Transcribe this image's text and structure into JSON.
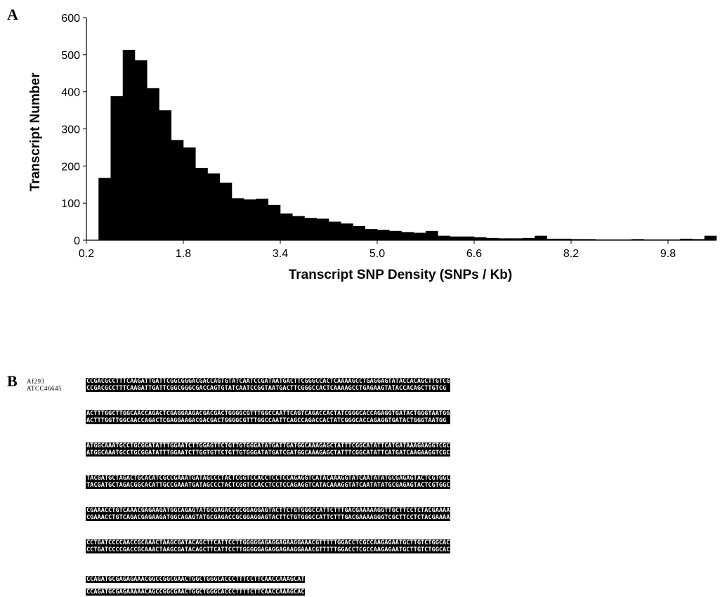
{
  "panel_a_label": "A",
  "panel_b_label": "B",
  "chart_data": {
    "type": "bar",
    "xlabel": "Transcript SNP Density (SNPs / Kb)",
    "ylabel": "Transcript Number",
    "ylim": [
      0,
      600
    ],
    "xlim": [
      0.2,
      10.6
    ],
    "bin_width": 0.2,
    "yticks": [
      "0",
      "100",
      "200",
      "300",
      "400",
      "500",
      "600"
    ],
    "xticks": [
      "0.2",
      "1.8",
      "3.4",
      "5.0",
      "6.6",
      "8.2",
      "9.8"
    ],
    "xtick_values": [
      0.2,
      1.8,
      3.4,
      5.0,
      6.6,
      8.2,
      9.8
    ],
    "bin_starts": [
      0.4,
      0.6,
      0.8,
      1.0,
      1.2,
      1.4,
      1.6,
      1.8,
      2.0,
      2.2,
      2.4,
      2.6,
      2.8,
      3.0,
      3.2,
      3.4,
      3.6,
      3.8,
      4.0,
      4.2,
      4.4,
      4.6,
      4.8,
      5.0,
      5.2,
      5.4,
      5.6,
      5.8,
      6.0,
      6.2,
      6.4,
      6.6,
      6.8,
      7.0,
      7.2,
      7.4,
      7.6,
      7.8,
      8.0,
      8.2,
      8.4,
      8.6,
      8.8,
      9.0,
      9.2,
      9.4,
      9.6,
      9.8,
      10.0,
      10.2,
      10.4
    ],
    "values": [
      168,
      388,
      513,
      485,
      410,
      350,
      270,
      250,
      195,
      180,
      155,
      113,
      110,
      112,
      95,
      72,
      65,
      60,
      58,
      50,
      45,
      38,
      30,
      28,
      25,
      22,
      20,
      25,
      12,
      10,
      10,
      8,
      6,
      5,
      5,
      6,
      12,
      4,
      4,
      3,
      3,
      2,
      2,
      2,
      3,
      2,
      2,
      2,
      4,
      3,
      12
    ]
  },
  "alignment": {
    "names": [
      "Af293",
      "ATCC46645"
    ],
    "blocks": [
      [
        "CCGACGCCTTTCAAGATTGATTCGGCGGGACGACCAGTGTATCAATCCGATAATGACTTCGGGCCACTCAAAAGCCTGAGGAGTATACCACAGCTTGTCG",
        "CCGACGCCTTTCAAGATTGATTCGGCGGGCGACCAGTGTATCAATCCGGTAATGACTTCGGGCCACTCAAAAGCCTGAGAAGTATACCACAGCTTGTCG"
      ],
      [
        "ACTTTGGCTTGGCAACCAGACTCGAGGAAGACGACGACTGGGGCGTTTGGCCAATTCAGTCAGACCACTATCGGGCACCAGAGGTGATACTGGGTAATGG",
        "ACTTTGGTTGGCAACCAGACTCGAGGAAGACGACGACTGGGGCGTTTGGCCAATTCAGCCAGACCACTATCGGGCACCAGAGGTGATACTGGGTAATGG"
      ],
      [
        "ATGGCAAATGCCTGCGGATATTTGGAATCTTGGAGTTCTGTTGTGGGATATGATTGATGGCAAAGAGCTATTTCGGCATATTCATGATAAAGAAGGTCGC",
        "ATGGCAAATGCCTGCGGATATTTGGAATCTTGGTGTTCTGTTGTGGGATATGATCGATGGCAAAGAGCTATTTCGGCATATTCATGATCAAGAAGGTCGC"
      ],
      [
        "TACGATGCTAGACTGCACATCGCCGAAATGATAGCCCTACTCGGTCCACCTCCTCCAGAGGTCATACAAAGGTATCAATATATGCGAGAGTACTCGTGGC",
        "TACGATGCTAGACGGCACATTGCCGAAATGATAGCCCTACTCGGTCCACCTCCTCCAGAGGTCATACAAAGGTATCAATATATGCGAGAGTACTCGTGGC"
      ],
      [
        "CGAAACCTGTCAAACGAGAAGATGGCAGAGTATGCGAGACCGCGGAGGAGTACTTCTGTGGGCCATTCTTTGACGAAAAAGGTTGCTTCCTCTACGAAAA",
        "CGAAACCTGTCAGACGAGAAGATGGCAGAGTATGCGAGACCGCGGAGGAGTACTTCTGTGGGCCATTCTTTGACGAAAAGGGTCGCTTCCTCTACGAAAA"
      ],
      [
        "CCTGATCCCCAACCGCAAACTAAGCGATACAGCTTCATTCCTTGGGGGAGAGGAGAAGGAAACGTTTTTGGACCTCGCCAAGAGAATGCTTGTCTGGCAC",
        "CCTGATCCCCGACCGCAAACTAAGCGATACAGCTTCATTCCTTGGGGGAGAGGAGAAGGAAACGTTTTTGGACCTCGCCAAGAGAATGCTTGTCTGGCAC"
      ],
      [
        "CCAGATGCGAGAGAAACGGCCGGCGAACTGGCTGGGCACCCTTTCCTTCAACCAAAGCAT",
        "CCAGATGCGAGAAAAACAGCCGGCGAACTGGCTGGGCACCCTTTTCTTCAACCAAAGCAC"
      ]
    ]
  }
}
